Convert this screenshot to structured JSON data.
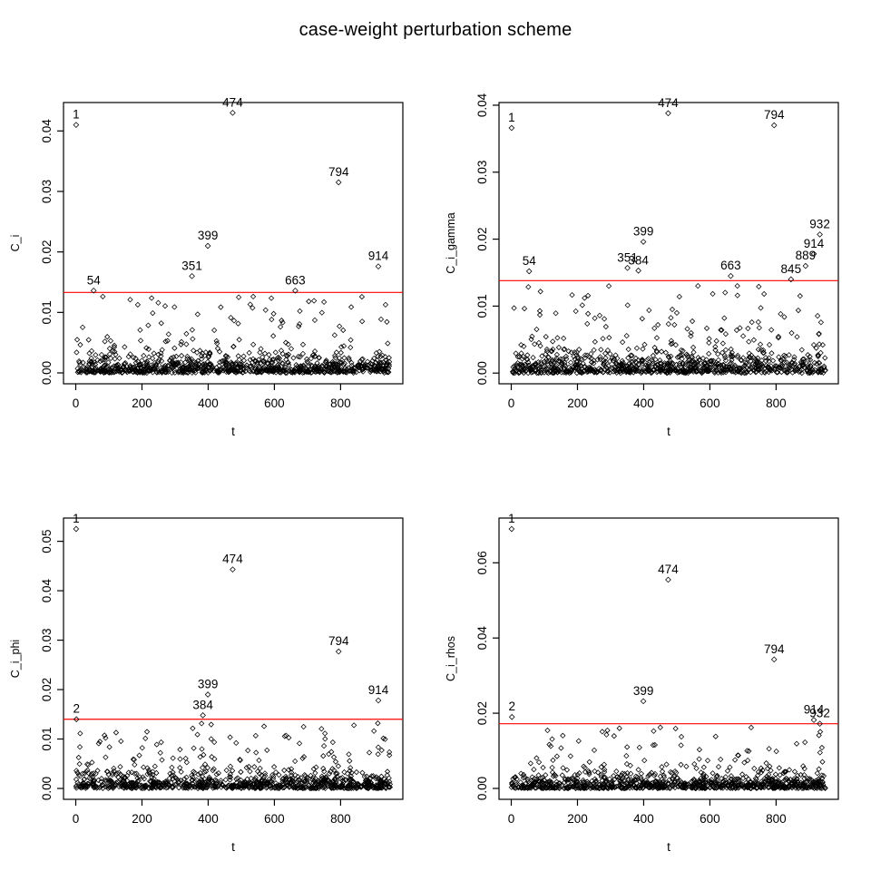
{
  "page": {
    "title": "case-weight perturbation scheme",
    "background_color": "#ffffff"
  },
  "colors": {
    "points": "#000000",
    "axis": "#000000",
    "threshold_line": "#ff0000"
  },
  "chart_data": [
    {
      "type": "scatter",
      "panel": "top-left",
      "xlabel": "t",
      "ylabel": "C_i",
      "xlim": [
        -37,
        988
      ],
      "ylim": [
        -0.0018,
        0.0447
      ],
      "xticks": [
        0,
        200,
        400,
        600,
        800
      ],
      "xtick_labels": [
        "0",
        "200",
        "400",
        "600",
        "800"
      ],
      "yticks": [
        0.0,
        0.01,
        0.02,
        0.03,
        0.04
      ],
      "ytick_labels": [
        "0.00",
        "0.01",
        "0.02",
        "0.03",
        "0.04"
      ],
      "grid": false,
      "marker": "open-diamond",
      "threshold": 0.0133,
      "labeled_points": [
        {
          "label": "1",
          "x": 1,
          "y": 0.041
        },
        {
          "label": "54",
          "x": 54,
          "y": 0.0136
        },
        {
          "label": "351",
          "x": 351,
          "y": 0.016
        },
        {
          "label": "399",
          "x": 399,
          "y": 0.021
        },
        {
          "label": "474",
          "x": 474,
          "y": 0.043
        },
        {
          "label": "663",
          "x": 663,
          "y": 0.0136
        },
        {
          "label": "794",
          "x": 794,
          "y": 0.0315
        },
        {
          "label": "914",
          "x": 914,
          "y": 0.0176
        }
      ],
      "background_points": {
        "n": 950,
        "x_min": 1,
        "x_max": 950,
        "distribution": "exponential",
        "mean": 0.0011,
        "uniform_frac": 0.1,
        "max_y": 0.0127,
        "seed": 101
      }
    },
    {
      "type": "scatter",
      "panel": "top-right",
      "xlabel": "t",
      "ylabel": "C_i_gamma",
      "xlim": [
        -37,
        988
      ],
      "ylim": [
        -0.0016,
        0.0404
      ],
      "xticks": [
        0,
        200,
        400,
        600,
        800
      ],
      "xtick_labels": [
        "0",
        "200",
        "400",
        "600",
        "800"
      ],
      "yticks": [
        0.0,
        0.01,
        0.02,
        0.03,
        0.04
      ],
      "ytick_labels": [
        "0.00",
        "0.01",
        "0.02",
        "0.03",
        "0.04"
      ],
      "grid": false,
      "marker": "open-diamond",
      "threshold": 0.0138,
      "labeled_points": [
        {
          "label": "1",
          "x": 1,
          "y": 0.0366
        },
        {
          "label": "54",
          "x": 54,
          "y": 0.0152
        },
        {
          "label": "351",
          "x": 351,
          "y": 0.0157
        },
        {
          "label": "384",
          "x": 384,
          "y": 0.0153
        },
        {
          "label": "399",
          "x": 399,
          "y": 0.0196
        },
        {
          "label": "474",
          "x": 474,
          "y": 0.0388
        },
        {
          "label": "663",
          "x": 663,
          "y": 0.0145
        },
        {
          "label": "794",
          "x": 794,
          "y": 0.037
        },
        {
          "label": "845",
          "x": 845,
          "y": 0.014
        },
        {
          "label": "889",
          "x": 889,
          "y": 0.016
        },
        {
          "label": "914",
          "x": 914,
          "y": 0.0178
        },
        {
          "label": "932",
          "x": 932,
          "y": 0.0207
        }
      ],
      "background_points": {
        "n": 950,
        "x_min": 1,
        "x_max": 950,
        "distribution": "exponential",
        "mean": 0.00115,
        "uniform_frac": 0.1,
        "max_y": 0.0131,
        "seed": 202
      }
    },
    {
      "type": "scatter",
      "panel": "bottom-left",
      "xlabel": "t",
      "ylabel": "C_i_phi",
      "xlim": [
        -37,
        988
      ],
      "ylim": [
        -0.0022,
        0.0547
      ],
      "xticks": [
        0,
        200,
        400,
        600,
        800
      ],
      "xtick_labels": [
        "0",
        "200",
        "400",
        "600",
        "800"
      ],
      "yticks": [
        0.0,
        0.01,
        0.02,
        0.03,
        0.04,
        0.05
      ],
      "ytick_labels": [
        "0.00",
        "0.01",
        "0.02",
        "0.03",
        "0.04",
        "0.05"
      ],
      "grid": false,
      "marker": "open-diamond",
      "threshold": 0.014,
      "labeled_points": [
        {
          "label": "1",
          "x": 1,
          "y": 0.0525
        },
        {
          "label": "2",
          "x": 2,
          "y": 0.014
        },
        {
          "label": "384",
          "x": 384,
          "y": 0.0148
        },
        {
          "label": "399",
          "x": 399,
          "y": 0.019
        },
        {
          "label": "474",
          "x": 474,
          "y": 0.0443
        },
        {
          "label": "794",
          "x": 794,
          "y": 0.0277
        },
        {
          "label": "914",
          "x": 914,
          "y": 0.0178
        }
      ],
      "background_points": {
        "n": 950,
        "x_min": 1,
        "x_max": 950,
        "distribution": "exponential",
        "mean": 0.00117,
        "uniform_frac": 0.1,
        "max_y": 0.0133,
        "seed": 303
      }
    },
    {
      "type": "scatter",
      "panel": "bottom-right",
      "xlabel": "t",
      "ylabel": "C_i_rhos",
      "xlim": [
        -37,
        988
      ],
      "ylim": [
        -0.0029,
        0.0719
      ],
      "xticks": [
        0,
        200,
        400,
        600,
        800
      ],
      "xtick_labels": [
        "0",
        "200",
        "400",
        "600",
        "800"
      ],
      "yticks": [
        0.0,
        0.02,
        0.04,
        0.06
      ],
      "ytick_labels": [
        "0.00",
        "0.02",
        "0.04",
        "0.06"
      ],
      "grid": false,
      "marker": "open-diamond",
      "threshold": 0.0172,
      "labeled_points": [
        {
          "label": "1",
          "x": 1,
          "y": 0.069
        },
        {
          "label": "2",
          "x": 2,
          "y": 0.019
        },
        {
          "label": "399",
          "x": 399,
          "y": 0.0232
        },
        {
          "label": "474",
          "x": 474,
          "y": 0.0555
        },
        {
          "label": "794",
          "x": 794,
          "y": 0.0343
        },
        {
          "label": "914",
          "x": 914,
          "y": 0.0182
        },
        {
          "label": "932",
          "x": 932,
          "y": 0.0172
        }
      ],
      "background_points": {
        "n": 950,
        "x_min": 1,
        "x_max": 950,
        "distribution": "exponential",
        "mean": 0.00143,
        "uniform_frac": 0.1,
        "max_y": 0.0163,
        "seed": 404
      }
    }
  ]
}
